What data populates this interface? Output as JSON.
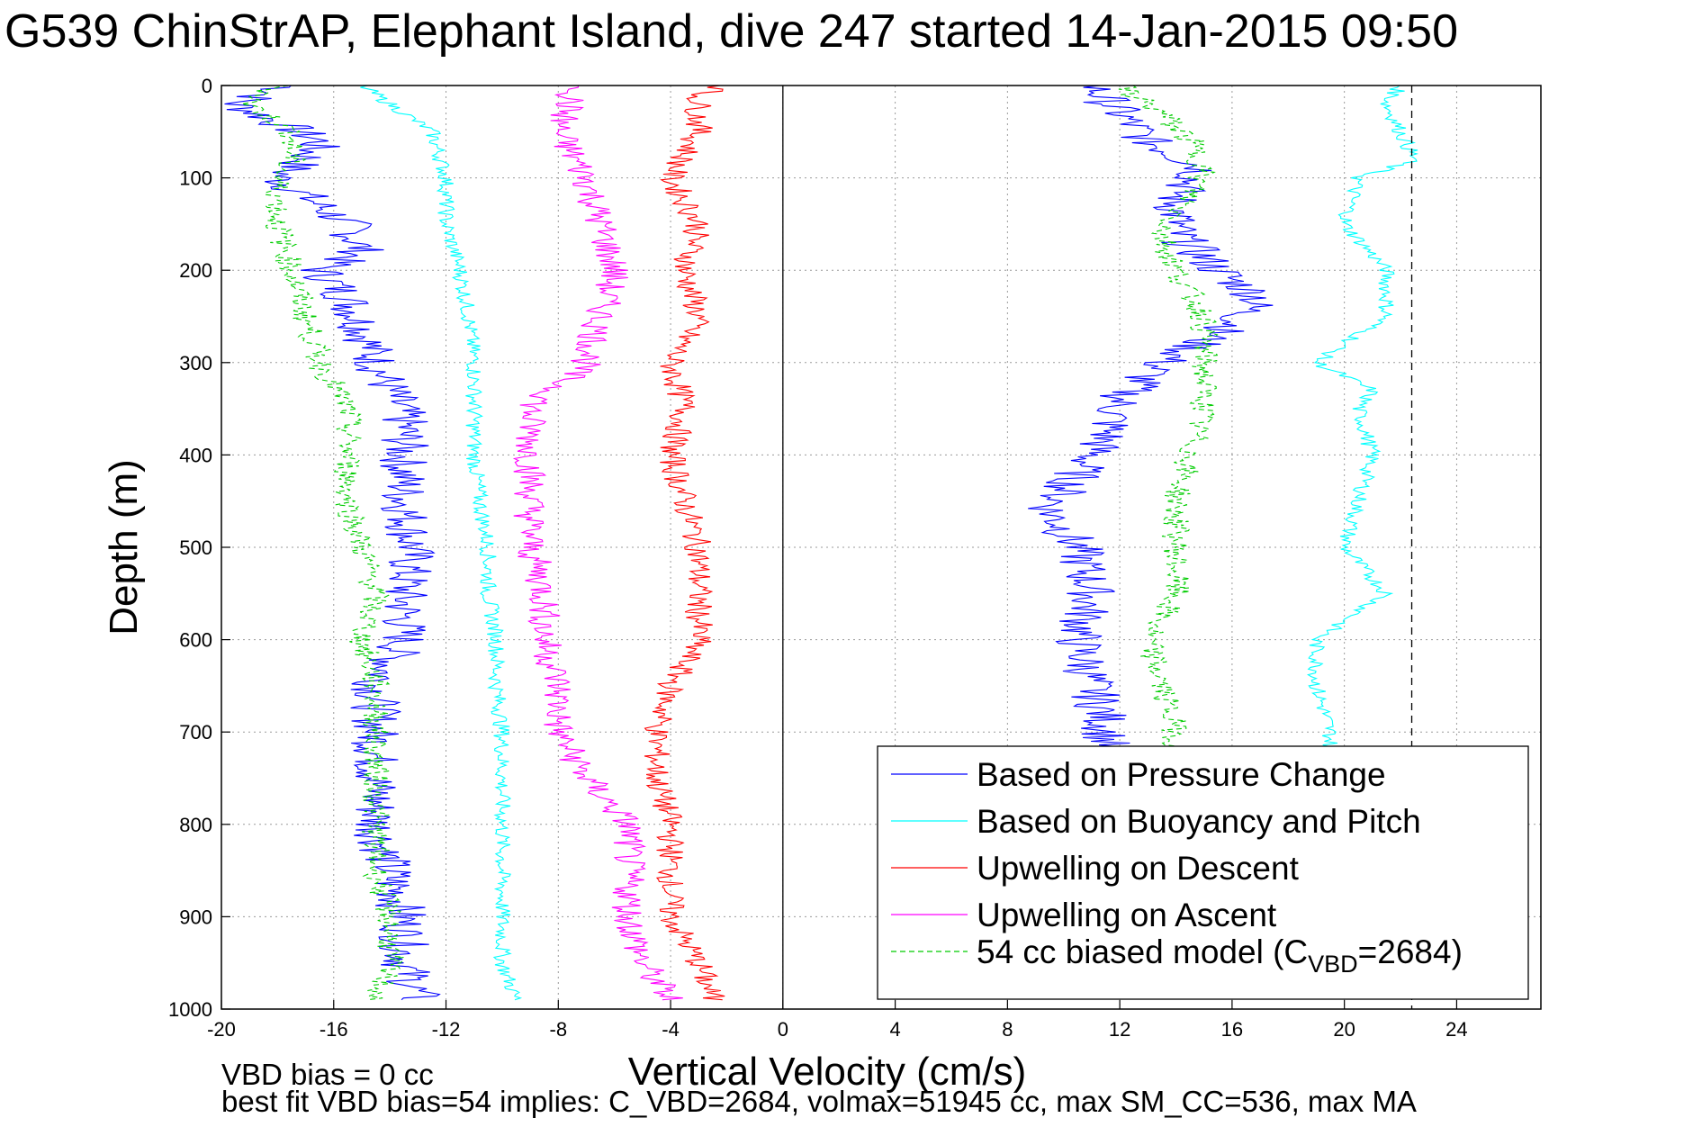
{
  "chart_data": {
    "type": "line",
    "title": "G539 ChinStrAP, Elephant Island, dive 247 started 14-Jan-2015 09:50",
    "xlabel": "Vertical Velocity (cm/s)",
    "ylabel": "Depth (m)",
    "xlim": [
      -20,
      27
    ],
    "ylim": [
      0,
      1000
    ],
    "y_reversed": true,
    "grid": true,
    "x_ticks": [
      -20,
      -16,
      -12,
      -8,
      -4,
      0,
      4,
      8,
      12,
      16,
      20,
      24
    ],
    "x_tick_labels": [
      "-20",
      "-16",
      "-12",
      "-8",
      "-4",
      "0",
      "4",
      "8",
      "12",
      "16",
      "20",
      "24"
    ],
    "y_ticks": [
      0,
      100,
      200,
      300,
      400,
      500,
      600,
      700,
      800,
      900,
      1000
    ],
    "y_tick_labels": [
      "0",
      "100",
      "200",
      "300",
      "400",
      "500",
      "600",
      "700",
      "800",
      "900",
      "1000"
    ],
    "reference_lines": [
      {
        "x": 0,
        "style": "solid",
        "color": "#000000"
      },
      {
        "x": 22.4,
        "style": "dashed",
        "color": "#000000"
      }
    ],
    "legend_position": "bottom-right",
    "legend": [
      {
        "label": "Based on Pressure Change",
        "color": "#0000ff",
        "dash": "solid"
      },
      {
        "label": "Based on Buoyancy and Pitch",
        "color": "#00ffff",
        "dash": "solid"
      },
      {
        "label": "Upwelling on Descent",
        "color": "#ff0000",
        "dash": "solid"
      },
      {
        "label": "Upwelling on Ascent",
        "color": "#ff00ff",
        "dash": "solid"
      },
      {
        "label_prefix": "54 cc biased model (C",
        "label_sub": "VBD",
        "label_suffix": "=2684)",
        "color": "#00cc00",
        "dash": "dashed"
      }
    ],
    "series": [
      {
        "color": "#0000ff",
        "noise": 0.9,
        "segments": [
          {
            "depth": [
              0,
              20,
              40,
              60,
              80,
              100,
              120,
              150,
              180,
              200,
              230,
              260,
              300,
              330,
              360,
              380,
              400,
              450,
              500,
              550,
              600,
              650,
              700,
              750,
              800,
              850,
              900,
              950,
              990
            ],
            "x": [
              -17.5,
              -19.5,
              -18,
              -16.5,
              -17,
              -18,
              -17,
              -15.5,
              -15,
              -16.5,
              -15.5,
              -15,
              -14.5,
              -14,
              -13.5,
              -13.5,
              -13.5,
              -13.5,
              -13.2,
              -13.5,
              -13.5,
              -14.5,
              -14.5,
              -14.5,
              -14.5,
              -14,
              -13.5,
              -13.5,
              -13
            ]
          },
          {
            "depth": [
              0,
              30,
              60,
              90,
              120,
              160,
              200,
              230,
              260,
              300,
              340,
              380,
              420,
              460,
              500,
              550,
              600,
              650,
              690,
              720
            ],
            "x": [
              11,
              12,
              13,
              15,
              14,
              14,
              15.5,
              17,
              16,
              13.5,
              12,
              11.5,
              10.5,
              9.5,
              10.5,
              11,
              10.5,
              11,
              11.5,
              11.5
            ]
          }
        ]
      },
      {
        "color": "#00ffff",
        "noise": 0.3,
        "segments": [
          {
            "depth": [
              0,
              20,
              50,
              100,
              150,
              200,
              250,
              300,
              350,
              400,
              450,
              500,
              550,
              600,
              650,
              700,
              750,
              800,
              850,
              900,
              950,
              990
            ],
            "x": [
              -15,
              -14,
              -12.5,
              -12,
              -12,
              -11.5,
              -11.2,
              -11,
              -11,
              -11,
              -10.8,
              -10.5,
              -10.5,
              -10.2,
              -10.2,
              -10,
              -10,
              -10,
              -10,
              -10,
              -10,
              -9.5
            ]
          },
          {
            "depth": [
              0,
              20,
              50,
              80,
              100,
              150,
              200,
              250,
              300,
              330,
              350,
              400,
              450,
              500,
              550,
              600,
              650,
              700,
              730
            ],
            "x": [
              22,
              21.5,
              22,
              22.5,
              20.5,
              20,
              21.5,
              21.5,
              19,
              21,
              20.5,
              21,
              20.5,
              20,
              21.5,
              19,
              19,
              19.5,
              19.5
            ]
          }
        ]
      },
      {
        "color": "#ff0000",
        "noise": 0.5,
        "segments": [
          {
            "depth": [
              0,
              10,
              50,
              100,
              150,
              200,
              250,
              300,
              350,
              400,
              450,
              500,
              550,
              600,
              650,
              700,
              750,
              800,
              850,
              900,
              950,
              990
            ],
            "x": [
              -2,
              -3,
              -3,
              -4,
              -3,
              -3.5,
              -3,
              -4,
              -3.5,
              -4,
              -3.5,
              -3,
              -3,
              -3,
              -4,
              -4.5,
              -4.5,
              -4,
              -4,
              -4,
              -3,
              -2.5
            ]
          }
        ]
      },
      {
        "color": "#ff00ff",
        "noise": 0.6,
        "segments": [
          {
            "depth": [
              0,
              10,
              50,
              100,
              150,
              200,
              250,
              300,
              350,
              400,
              450,
              500,
              550,
              600,
              650,
              700,
              750,
              800,
              850,
              900,
              950,
              990
            ],
            "x": [
              -7,
              -7.5,
              -8,
              -7,
              -6.5,
              -6,
              -6.5,
              -7,
              -9,
              -9,
              -9,
              -9,
              -8.5,
              -8.5,
              -8,
              -8,
              -7,
              -5.5,
              -5.5,
              -5.5,
              -5,
              -4
            ]
          }
        ]
      },
      {
        "color": "#00cc00",
        "dash": "6,4",
        "noise": 0.5,
        "segments": [
          {
            "depth": [
              0,
              20,
              50,
              80,
              100,
              150,
              200,
              250,
              300,
              350,
              400,
              450,
              500,
              550,
              600,
              650,
              700,
              750,
              800,
              850,
              900,
              950,
              990
            ],
            "x": [
              -18,
              -19,
              -17.5,
              -17.5,
              -18,
              -18,
              -17.5,
              -17,
              -16.5,
              -15.5,
              -15.5,
              -15.5,
              -15,
              -14.5,
              -15,
              -14.5,
              -14.5,
              -14.5,
              -14.5,
              -14.5,
              -14,
              -14,
              -14.5
            ]
          },
          {
            "depth": [
              0,
              30,
              60,
              90,
              120,
              160,
              200,
              250,
              300,
              350,
              400,
              450,
              500,
              550,
              600,
              650,
              700,
              720
            ],
            "x": [
              12,
              13.5,
              14.5,
              15,
              14.5,
              13.5,
              14,
              15,
              15,
              15,
              14.5,
              14,
              14,
              14,
              13,
              13.5,
              14,
              14
            ]
          }
        ]
      }
    ]
  },
  "footer": {
    "bias_line": "VBD bias = 0 cc",
    "fit_line": "best fit VBD bias=54 implies: C_VBD=2684, volmax=51945 cc, max SM_CC=536, max MA"
  }
}
